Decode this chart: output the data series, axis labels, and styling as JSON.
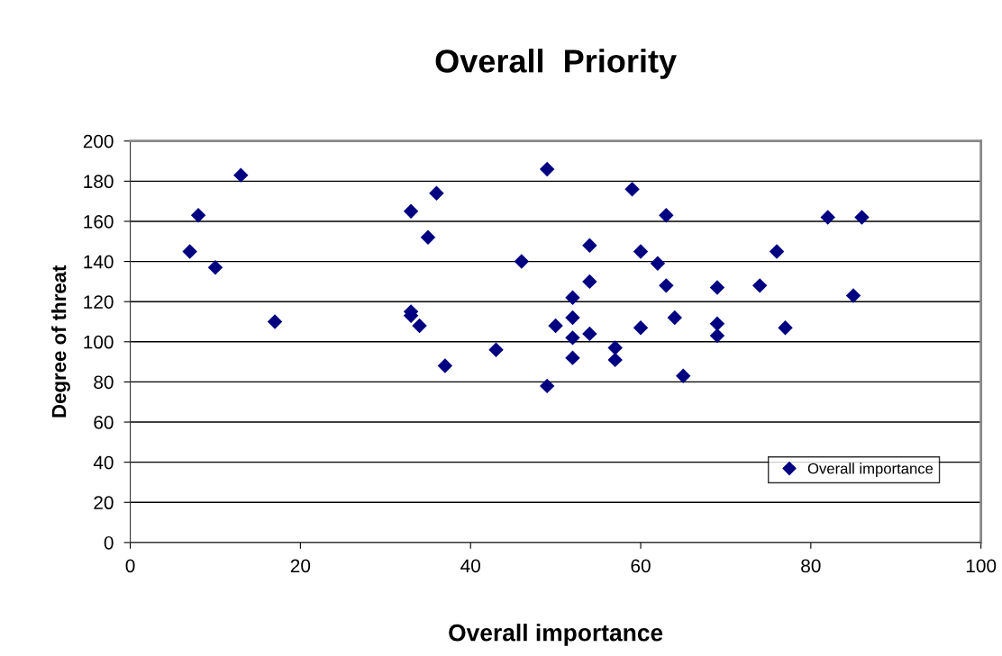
{
  "chart_data": {
    "type": "scatter",
    "title": "Overall  Priority",
    "xlabel": "Overall importance",
    "ylabel": "Degree of threat",
    "xlim": [
      0,
      100
    ],
    "xticks": [
      0,
      20,
      40,
      60,
      80,
      100
    ],
    "ylim": [
      0,
      200
    ],
    "yticks": [
      0,
      20,
      40,
      60,
      80,
      100,
      120,
      140,
      160,
      180,
      200
    ],
    "grid": "y",
    "legend": "bottom right",
    "marker": "diamond",
    "series": [
      {
        "name": "Overall importance",
        "color": "#000080",
        "x": [
          7,
          8,
          10,
          13,
          17,
          33,
          36,
          35,
          33,
          33,
          34,
          37,
          49,
          59,
          63,
          54,
          60,
          62,
          46,
          54,
          63,
          52,
          52,
          64,
          50,
          60,
          54,
          52,
          43,
          57,
          52,
          57,
          49,
          65,
          82,
          86,
          76,
          69,
          74,
          85,
          69,
          69,
          77
        ],
        "values": [
          145,
          163,
          137,
          183,
          110,
          165,
          174,
          152,
          115,
          113,
          108,
          88,
          186,
          176,
          163,
          148,
          145,
          139,
          140,
          130,
          128,
          122,
          112,
          112,
          108,
          107,
          104,
          102,
          96,
          97,
          92,
          91,
          78,
          83,
          162,
          162,
          145,
          127,
          128,
          123,
          109,
          103,
          107
        ]
      }
    ]
  }
}
